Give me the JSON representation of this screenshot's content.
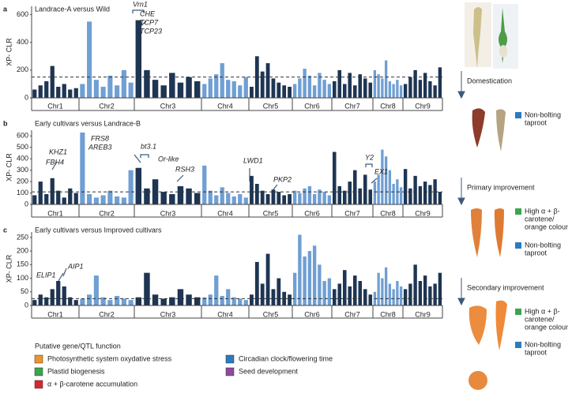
{
  "chart_data": [
    {
      "type": "manhattan",
      "panel": "a",
      "title": "Landrace-A versus Wild",
      "ylabel": "XP- CLR",
      "categories": [
        "Chr1",
        "Chr2",
        "Chr3",
        "Chr4",
        "Chr5",
        "Chr6",
        "Chr7",
        "Chr8",
        "Chr9"
      ],
      "colors": [
        "#1e3553",
        "#6f9fd3"
      ],
      "values": [
        [
          60,
          90,
          120,
          230,
          80,
          100,
          60,
          70
        ],
        [
          100,
          550,
          130,
          80,
          160,
          90,
          200,
          110
        ],
        [
          560,
          200,
          130,
          90,
          180,
          110,
          150,
          120
        ],
        [
          100,
          140,
          170,
          250,
          130,
          120,
          90,
          150
        ],
        [
          80,
          300,
          190,
          250,
          140,
          110,
          90,
          80
        ],
        [
          100,
          140,
          210,
          160,
          90,
          180,
          130,
          100
        ],
        [
          120,
          200,
          100,
          180,
          90,
          170,
          140,
          110
        ],
        [
          200,
          170,
          140,
          270,
          120,
          100,
          130,
          90
        ],
        [
          100,
          150,
          200,
          130,
          180,
          120,
          90,
          220
        ]
      ],
      "threshold": 150,
      "ylim": [
        0,
        660
      ],
      "yticks": [
        0,
        200,
        400,
        600
      ],
      "annotations": [
        {
          "text": "Vrn1",
          "color": "#2a7bbf"
        },
        {
          "text": "CHE",
          "color": "#2a7bbf"
        },
        {
          "text": "TCP7",
          "color": "#2a7bbf"
        },
        {
          "text": "TCP23",
          "color": "#2a7bbf"
        }
      ]
    },
    {
      "type": "manhattan",
      "panel": "b",
      "title": "Early cultivars versus Landrace-B",
      "ylabel": "XP- CLR",
      "categories": [
        "Chr1",
        "Chr2",
        "Chr3",
        "Chr4",
        "Chr5",
        "Chr6",
        "Chr7",
        "Chr8",
        "Chr9"
      ],
      "colors": [
        "#1e3553",
        "#6f9fd3"
      ],
      "values": [
        [
          80,
          200,
          90,
          230,
          120,
          60,
          140,
          100
        ],
        [
          630,
          90,
          60,
          80,
          120,
          70,
          60,
          300
        ],
        [
          320,
          140,
          220,
          110,
          90,
          160,
          140,
          100
        ],
        [
          340,
          120,
          80,
          150,
          100,
          70,
          90,
          60
        ],
        [
          250,
          180,
          120,
          90,
          130,
          110,
          80,
          90
        ],
        [
          120,
          100,
          140,
          160,
          90,
          130,
          110,
          80
        ],
        [
          460,
          160,
          120,
          200,
          300,
          140,
          260,
          130
        ],
        [
          200,
          260,
          480,
          420,
          300,
          180,
          220,
          150
        ],
        [
          310,
          140,
          250,
          160,
          200,
          170,
          220,
          110
        ]
      ],
      "threshold": 110,
      "ylim": [
        0,
        650
      ],
      "yticks": [
        0,
        100,
        200,
        300,
        400,
        500,
        600
      ],
      "annotations": [
        {
          "text": "KHZ1",
          "color": "#2a7bbf"
        },
        {
          "text": "FBH4",
          "color": "#2a7bbf"
        },
        {
          "text": "FRS8",
          "color": "#2a7bbf"
        },
        {
          "text": "AREB3",
          "color": "#2a7bbf"
        },
        {
          "text": "bt3.1",
          "color": "#d7262f"
        },
        {
          "text": "Or-like",
          "color": "#3aa64a"
        },
        {
          "text": "RSH3",
          "color": "#2a7bbf"
        },
        {
          "text": "LWD1",
          "color": "#2a7bbf"
        },
        {
          "text": "PKP2",
          "color": "#8e4a9e"
        },
        {
          "text": "Y2",
          "color": "#d7262f"
        },
        {
          "text": "EX1",
          "color": "#f0932b"
        }
      ]
    },
    {
      "type": "manhattan",
      "panel": "c",
      "title": "Early cultivars versus Improved cultivars",
      "ylabel": "XP- CLR",
      "categories": [
        "Chr1",
        "Chr2",
        "Chr3",
        "Chr4",
        "Chr5",
        "Chr6",
        "Chr7",
        "Chr8",
        "Chr9"
      ],
      "colors": [
        "#1e3553",
        "#6f9fd3"
      ],
      "values": [
        [
          20,
          40,
          30,
          60,
          90,
          70,
          30,
          20
        ],
        [
          25,
          40,
          110,
          30,
          20,
          35,
          25,
          20
        ],
        [
          30,
          120,
          40,
          25,
          30,
          60,
          40,
          30
        ],
        [
          30,
          40,
          110,
          35,
          60,
          30,
          25,
          20
        ],
        [
          40,
          160,
          80,
          190,
          60,
          100,
          50,
          40
        ],
        [
          120,
          260,
          180,
          200,
          220,
          150,
          90,
          100
        ],
        [
          60,
          80,
          130,
          70,
          110,
          90,
          60,
          40
        ],
        [
          50,
          120,
          100,
          140,
          80,
          60,
          90,
          70
        ],
        [
          60,
          80,
          150,
          90,
          110,
          70,
          80,
          120
        ]
      ],
      "threshold": 25,
      "ylim": [
        0,
        270
      ],
      "yticks": [
        0,
        50,
        100,
        150,
        200,
        250
      ],
      "annotations": [
        {
          "text": "ELIP1",
          "color": "#3aa64a"
        },
        {
          "text": "AIP1",
          "color": "#2a7bbf"
        }
      ]
    }
  ],
  "legend": {
    "title": "Putative gene/QTL function",
    "items": [
      {
        "text": "Photosynthetic system oxydative stress",
        "color": "#f0932b"
      },
      {
        "text": "Circadian clock/flowering time",
        "color": "#2a7bbf"
      },
      {
        "text": "Plastid biogenesis",
        "color": "#3aa64a"
      },
      {
        "text": "Seed development",
        "color": "#8e4a9e"
      },
      {
        "text": "α + β-carotene accumulation",
        "color": "#d7262f"
      }
    ]
  },
  "side": {
    "stages": [
      "Domestication",
      "Primary improvement",
      "Secondary improvement"
    ],
    "traits": [
      {
        "lines": [
          "Non-bolting",
          "taproot"
        ],
        "color": "#2a7bbf"
      },
      {
        "lines": [
          "High α + β-",
          "carotene/",
          "orange colour"
        ],
        "color": "#3aa64a"
      },
      {
        "lines": [
          "Non-bolting",
          "taproot"
        ],
        "color": "#2a7bbf"
      },
      {
        "lines": [
          "High α + β-",
          "carotene/",
          "orange colour"
        ],
        "color": "#3aa64a"
      },
      {
        "lines": [
          "Non-bolting",
          "taproot"
        ],
        "color": "#2a7bbf"
      }
    ]
  }
}
